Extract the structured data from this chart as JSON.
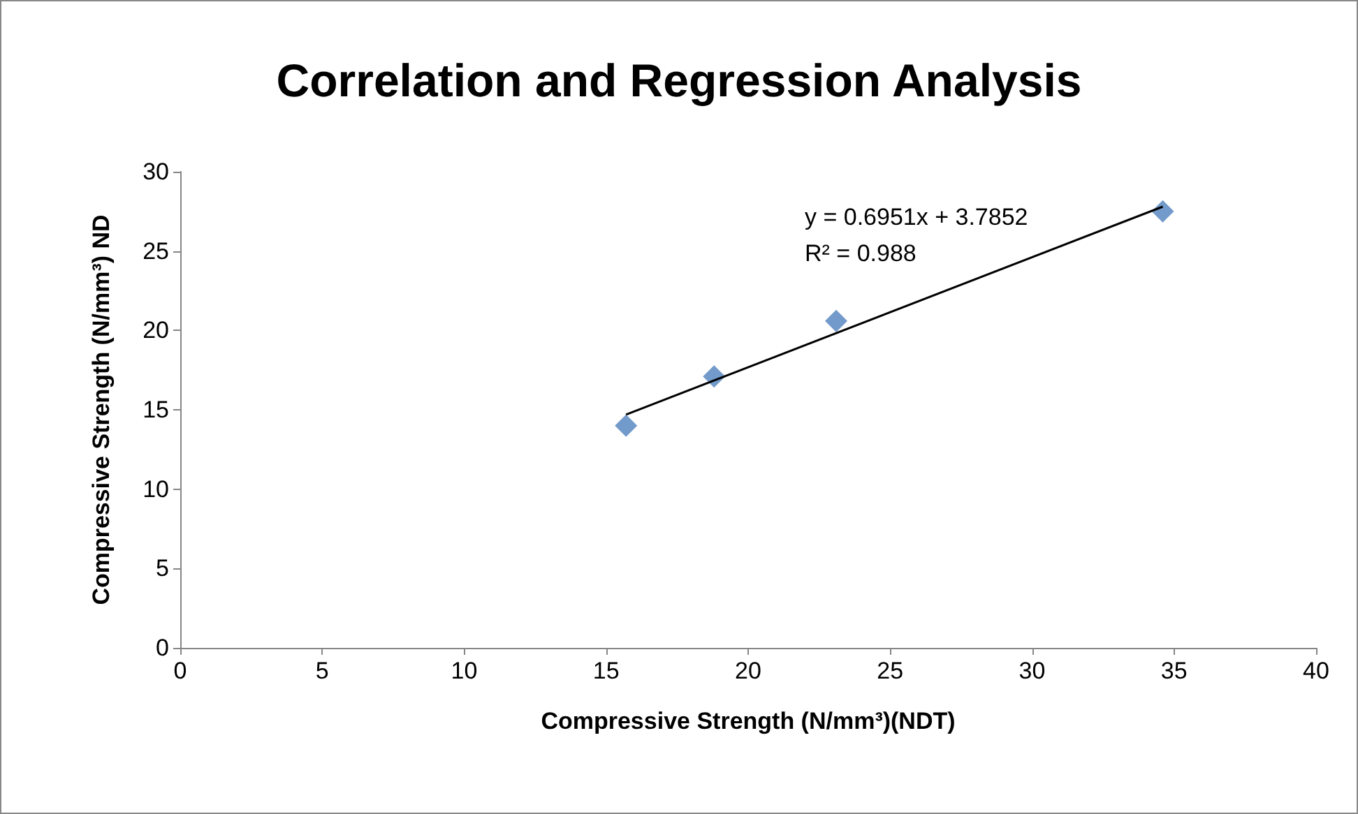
{
  "chart_data": {
    "type": "scatter",
    "title": "Correlation and Regression Analysis",
    "xlabel": "Compressive Strength (N/mm³)(NDT)",
    "ylabel": "Compressive Strength (N/mm³) ND",
    "annotations": [
      "y = 0.6951x + 3.7852",
      "R² = 0.988"
    ],
    "series": [
      {
        "color": "#4f81bd",
        "marker": "diamond",
        "x": [
          15.7,
          18.8,
          23.1,
          34.6
        ],
        "values": [
          14.0,
          17.1,
          20.6,
          27.5
        ]
      },
      {
        "type": "line",
        "color": "#000000",
        "marker": "none",
        "line_style": "solid",
        "x": [
          15.7,
          34.6
        ],
        "values": [
          14.7,
          27.8
        ]
      }
    ],
    "xlim": [
      0,
      40
    ],
    "xticks": [
      0,
      5,
      10,
      15,
      20,
      25,
      30,
      35,
      40
    ],
    "ylim": [
      0,
      30
    ],
    "yticks": [
      0,
      5,
      10,
      15,
      20,
      25,
      30
    ],
    "grid": false
  }
}
